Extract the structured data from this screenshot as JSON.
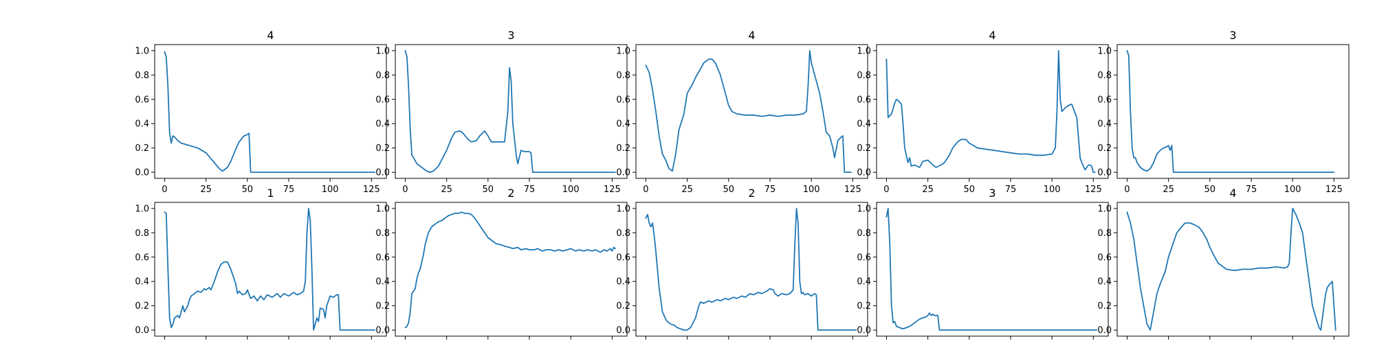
{
  "colors": {
    "line": "#1f77b4",
    "axes": "#000000",
    "background": "#ffffff"
  },
  "chart_data": [
    {
      "type": "line",
      "title": "4",
      "xlim": [
        -6,
        134
      ],
      "ylim": [
        -0.05,
        1.05
      ],
      "xticks": [
        0,
        25,
        50,
        75,
        100,
        125
      ],
      "yticks": [
        0.0,
        0.2,
        0.4,
        0.6,
        0.8,
        1.0
      ],
      "x": [
        0,
        1,
        2,
        3,
        4,
        5,
        6,
        8,
        10,
        15,
        20,
        25,
        30,
        33,
        35,
        38,
        40,
        43,
        45,
        48,
        50,
        51,
        52,
        127
      ],
      "y": [
        0.99,
        0.95,
        0.7,
        0.32,
        0.24,
        0.3,
        0.29,
        0.26,
        0.24,
        0.22,
        0.2,
        0.16,
        0.08,
        0.03,
        0.01,
        0.04,
        0.09,
        0.19,
        0.25,
        0.3,
        0.31,
        0.32,
        0.0,
        0.0
      ]
    },
    {
      "type": "line",
      "title": "3",
      "xlim": [
        -6,
        134
      ],
      "ylim": [
        -0.05,
        1.05
      ],
      "xticks": [
        0,
        25,
        50,
        75,
        100,
        125
      ],
      "yticks": [
        0.0,
        0.2,
        0.4,
        0.6,
        0.8,
        1.0
      ],
      "x": [
        0,
        1,
        2,
        3,
        4,
        5,
        7,
        10,
        13,
        15,
        17,
        20,
        25,
        28,
        30,
        33,
        35,
        38,
        40,
        43,
        45,
        48,
        50,
        52,
        55,
        60,
        62,
        63,
        64,
        65,
        67,
        68,
        70,
        72,
        75,
        76,
        77,
        127
      ],
      "y": [
        1.0,
        0.95,
        0.7,
        0.35,
        0.14,
        0.12,
        0.07,
        0.04,
        0.01,
        0.0,
        0.01,
        0.05,
        0.18,
        0.28,
        0.33,
        0.34,
        0.32,
        0.27,
        0.25,
        0.26,
        0.3,
        0.34,
        0.3,
        0.25,
        0.25,
        0.25,
        0.5,
        0.86,
        0.75,
        0.4,
        0.15,
        0.07,
        0.18,
        0.17,
        0.17,
        0.16,
        0.0,
        0.0
      ]
    },
    {
      "type": "line",
      "title": "4",
      "xlim": [
        -6,
        134
      ],
      "ylim": [
        -0.05,
        1.05
      ],
      "xticks": [
        0,
        25,
        50,
        75,
        100,
        125
      ],
      "yticks": [
        0.0,
        0.2,
        0.4,
        0.6,
        0.8,
        1.0
      ],
      "x": [
        0,
        2,
        4,
        6,
        8,
        10,
        12,
        14,
        16,
        18,
        20,
        23,
        25,
        28,
        30,
        33,
        35,
        38,
        40,
        42,
        45,
        48,
        50,
        52,
        55,
        60,
        65,
        70,
        75,
        80,
        85,
        90,
        95,
        97,
        98,
        99,
        100,
        102,
        105,
        107,
        109,
        111,
        113,
        114,
        116,
        118,
        119,
        120,
        124
      ],
      "y": [
        0.88,
        0.82,
        0.68,
        0.5,
        0.3,
        0.15,
        0.1,
        0.03,
        0.01,
        0.15,
        0.35,
        0.48,
        0.65,
        0.72,
        0.78,
        0.85,
        0.9,
        0.93,
        0.93,
        0.9,
        0.8,
        0.65,
        0.55,
        0.5,
        0.48,
        0.47,
        0.47,
        0.46,
        0.47,
        0.46,
        0.47,
        0.47,
        0.48,
        0.5,
        0.7,
        1.0,
        0.9,
        0.8,
        0.65,
        0.5,
        0.33,
        0.3,
        0.2,
        0.12,
        0.26,
        0.29,
        0.3,
        0.0,
        0.0
      ]
    },
    {
      "type": "line",
      "title": "4",
      "xlim": [
        -6,
        134
      ],
      "ylim": [
        -0.05,
        1.05
      ],
      "xticks": [
        0,
        25,
        50,
        75,
        100,
        125
      ],
      "yticks": [
        0.0,
        0.2,
        0.4,
        0.6,
        0.8,
        1.0
      ],
      "x": [
        0,
        1,
        3,
        5,
        6,
        7,
        9,
        10,
        11,
        12,
        13,
        14,
        15,
        17,
        20,
        22,
        25,
        28,
        30,
        33,
        35,
        38,
        40,
        43,
        45,
        48,
        50,
        55,
        60,
        65,
        70,
        75,
        80,
        85,
        90,
        95,
        100,
        102,
        103,
        104,
        105,
        106,
        108,
        110,
        112,
        113,
        115,
        117,
        118,
        120,
        122,
        123,
        124,
        125,
        126
      ],
      "y": [
        0.93,
        0.45,
        0.48,
        0.57,
        0.6,
        0.59,
        0.56,
        0.4,
        0.2,
        0.14,
        0.08,
        0.12,
        0.05,
        0.06,
        0.04,
        0.09,
        0.1,
        0.06,
        0.04,
        0.06,
        0.08,
        0.14,
        0.2,
        0.25,
        0.27,
        0.27,
        0.24,
        0.2,
        0.19,
        0.18,
        0.17,
        0.16,
        0.15,
        0.15,
        0.14,
        0.14,
        0.15,
        0.2,
        0.5,
        1.0,
        0.6,
        0.5,
        0.53,
        0.55,
        0.56,
        0.52,
        0.45,
        0.12,
        0.08,
        0.02,
        0.06,
        0.06,
        0.05,
        0.0,
        0.0
      ]
    },
    {
      "type": "line",
      "title": "3",
      "xlim": [
        -6,
        134
      ],
      "ylim": [
        -0.05,
        1.05
      ],
      "xticks": [
        0,
        25,
        50,
        75,
        100,
        125
      ],
      "yticks": [
        0.0,
        0.2,
        0.4,
        0.6,
        0.8,
        1.0
      ],
      "x": [
        0,
        1,
        2,
        3,
        4,
        5,
        6,
        8,
        10,
        12,
        14,
        16,
        18,
        20,
        22,
        24,
        25,
        26,
        27,
        28,
        125
      ],
      "y": [
        1.0,
        0.96,
        0.5,
        0.2,
        0.12,
        0.12,
        0.08,
        0.04,
        0.02,
        0.01,
        0.03,
        0.08,
        0.15,
        0.18,
        0.2,
        0.21,
        0.22,
        0.18,
        0.22,
        0.0,
        0.0
      ]
    },
    {
      "type": "line",
      "title": "1",
      "xlim": [
        -6,
        134
      ],
      "ylim": [
        -0.05,
        1.05
      ],
      "xticks": [
        0,
        25,
        50,
        75,
        100,
        125
      ],
      "yticks": [
        0.0,
        0.2,
        0.4,
        0.6,
        0.8,
        1.0
      ],
      "x": [
        0,
        1,
        2,
        3,
        4,
        5,
        6,
        8,
        9,
        10,
        11,
        12,
        14,
        15,
        16,
        18,
        20,
        22,
        24,
        25,
        27,
        28,
        30,
        32,
        34,
        36,
        38,
        40,
        42,
        43,
        44,
        45,
        47,
        49,
        50,
        52,
        54,
        56,
        58,
        60,
        62,
        65,
        68,
        70,
        72,
        75,
        78,
        80,
        82,
        84,
        85,
        86,
        87,
        88,
        89,
        90,
        92,
        93,
        94,
        96,
        97,
        98,
        100,
        102,
        104,
        105,
        106,
        108,
        127
      ],
      "y": [
        0.97,
        0.96,
        0.5,
        0.1,
        0.02,
        0.05,
        0.1,
        0.12,
        0.1,
        0.15,
        0.2,
        0.15,
        0.2,
        0.25,
        0.28,
        0.3,
        0.32,
        0.31,
        0.34,
        0.33,
        0.35,
        0.33,
        0.4,
        0.48,
        0.54,
        0.56,
        0.56,
        0.5,
        0.42,
        0.38,
        0.3,
        0.32,
        0.29,
        0.3,
        0.33,
        0.26,
        0.28,
        0.24,
        0.28,
        0.25,
        0.29,
        0.27,
        0.3,
        0.27,
        0.3,
        0.28,
        0.31,
        0.29,
        0.3,
        0.32,
        0.4,
        0.8,
        1.0,
        0.9,
        0.5,
        0.0,
        0.1,
        0.07,
        0.18,
        0.17,
        0.1,
        0.2,
        0.28,
        0.27,
        0.29,
        0.29,
        0.0,
        0.0,
        0.0
      ]
    },
    {
      "type": "line",
      "title": "2",
      "xlim": [
        -6,
        134
      ],
      "ylim": [
        -0.05,
        1.05
      ],
      "xticks": [
        0,
        25,
        50,
        75,
        100,
        125
      ],
      "yticks": [
        0.0,
        0.2,
        0.4,
        0.6,
        0.8,
        1.0
      ],
      "x": [
        0,
        1,
        2,
        3,
        4,
        5,
        6,
        7,
        8,
        9,
        10,
        11,
        12,
        13,
        14,
        16,
        18,
        20,
        22,
        24,
        26,
        28,
        30,
        32,
        34,
        36,
        38,
        40,
        42,
        44,
        46,
        48,
        50,
        52,
        55,
        58,
        60,
        63,
        65,
        68,
        70,
        73,
        75,
        78,
        80,
        83,
        85,
        88,
        90,
        93,
        95,
        98,
        100,
        103,
        105,
        108,
        110,
        113,
        115,
        118,
        120,
        122,
        124,
        125,
        126,
        127
      ],
      "y": [
        0.02,
        0.03,
        0.06,
        0.15,
        0.3,
        0.32,
        0.34,
        0.42,
        0.47,
        0.5,
        0.56,
        0.62,
        0.7,
        0.75,
        0.8,
        0.85,
        0.87,
        0.89,
        0.9,
        0.92,
        0.94,
        0.95,
        0.96,
        0.96,
        0.97,
        0.96,
        0.96,
        0.95,
        0.92,
        0.88,
        0.84,
        0.8,
        0.76,
        0.74,
        0.71,
        0.7,
        0.69,
        0.68,
        0.67,
        0.68,
        0.66,
        0.67,
        0.66,
        0.66,
        0.67,
        0.65,
        0.66,
        0.66,
        0.65,
        0.66,
        0.65,
        0.66,
        0.67,
        0.65,
        0.66,
        0.65,
        0.66,
        0.65,
        0.66,
        0.64,
        0.66,
        0.65,
        0.67,
        0.65,
        0.68,
        0.67
      ]
    },
    {
      "type": "line",
      "title": "2",
      "xlim": [
        -6,
        134
      ],
      "ylim": [
        -0.05,
        1.05
      ],
      "xticks": [
        0,
        25,
        50,
        75,
        100,
        125
      ],
      "yticks": [
        0.0,
        0.2,
        0.4,
        0.6,
        0.8,
        1.0
      ],
      "x": [
        0,
        1,
        2,
        3,
        4,
        5,
        6,
        7,
        8,
        9,
        10,
        11,
        12,
        13,
        15,
        17,
        19,
        21,
        23,
        25,
        27,
        30,
        32,
        33,
        35,
        38,
        40,
        43,
        45,
        48,
        50,
        53,
        55,
        58,
        60,
        63,
        65,
        68,
        70,
        73,
        75,
        77,
        78,
        80,
        82,
        85,
        87,
        89,
        90,
        91,
        92,
        93,
        94,
        95,
        96,
        98,
        100,
        102,
        103,
        104,
        105,
        107,
        127
      ],
      "y": [
        0.92,
        0.95,
        0.88,
        0.85,
        0.88,
        0.78,
        0.65,
        0.5,
        0.35,
        0.25,
        0.15,
        0.12,
        0.09,
        0.07,
        0.05,
        0.04,
        0.02,
        0.01,
        0.0,
        0.0,
        0.02,
        0.1,
        0.2,
        0.23,
        0.22,
        0.24,
        0.23,
        0.25,
        0.24,
        0.26,
        0.25,
        0.27,
        0.26,
        0.28,
        0.27,
        0.3,
        0.29,
        0.31,
        0.3,
        0.32,
        0.34,
        0.33,
        0.3,
        0.28,
        0.3,
        0.29,
        0.3,
        0.33,
        0.7,
        1.0,
        0.88,
        0.4,
        0.3,
        0.31,
        0.29,
        0.3,
        0.28,
        0.3,
        0.29,
        0.0,
        0.0,
        0.0,
        0.0
      ]
    },
    {
      "type": "line",
      "title": "3",
      "xlim": [
        -6,
        134
      ],
      "ylim": [
        -0.05,
        1.05
      ],
      "xticks": [
        0,
        25,
        50,
        75,
        100,
        125
      ],
      "yticks": [
        0.0,
        0.2,
        0.4,
        0.6,
        0.8,
        1.0
      ],
      "x": [
        0,
        1,
        2,
        3,
        4,
        5,
        6,
        8,
        10,
        12,
        14,
        16,
        18,
        20,
        22,
        24,
        25,
        26,
        27,
        28,
        29,
        30,
        31,
        32,
        127
      ],
      "y": [
        0.93,
        1.0,
        0.7,
        0.2,
        0.06,
        0.07,
        0.03,
        0.02,
        0.01,
        0.02,
        0.03,
        0.05,
        0.07,
        0.09,
        0.1,
        0.11,
        0.12,
        0.14,
        0.12,
        0.13,
        0.12,
        0.12,
        0.12,
        0.0,
        0.0
      ]
    },
    {
      "type": "line",
      "title": "4",
      "xlim": [
        -6,
        134
      ],
      "ylim": [
        -0.05,
        1.05
      ],
      "xticks": [
        0,
        25,
        50,
        75,
        100,
        125
      ],
      "yticks": [
        0.0,
        0.2,
        0.4,
        0.6,
        0.8,
        1.0
      ],
      "x": [
        0,
        2,
        4,
        6,
        8,
        10,
        12,
        14,
        16,
        18,
        20,
        23,
        25,
        28,
        30,
        33,
        35,
        38,
        40,
        43,
        45,
        48,
        50,
        53,
        55,
        60,
        65,
        70,
        75,
        80,
        85,
        90,
        95,
        97,
        98,
        99,
        100,
        102,
        104,
        106,
        108,
        110,
        112,
        113,
        115,
        116,
        117,
        119,
        120,
        121,
        122,
        124,
        126
      ],
      "y": [
        0.97,
        0.88,
        0.75,
        0.55,
        0.35,
        0.2,
        0.05,
        0.0,
        0.15,
        0.3,
        0.38,
        0.48,
        0.6,
        0.72,
        0.8,
        0.85,
        0.88,
        0.88,
        0.87,
        0.85,
        0.82,
        0.75,
        0.68,
        0.6,
        0.55,
        0.5,
        0.49,
        0.5,
        0.5,
        0.51,
        0.51,
        0.52,
        0.51,
        0.52,
        0.55,
        0.8,
        1.0,
        0.95,
        0.88,
        0.8,
        0.6,
        0.4,
        0.2,
        0.15,
        0.06,
        0.02,
        0.0,
        0.2,
        0.3,
        0.35,
        0.37,
        0.4,
        0.0
      ]
    }
  ]
}
